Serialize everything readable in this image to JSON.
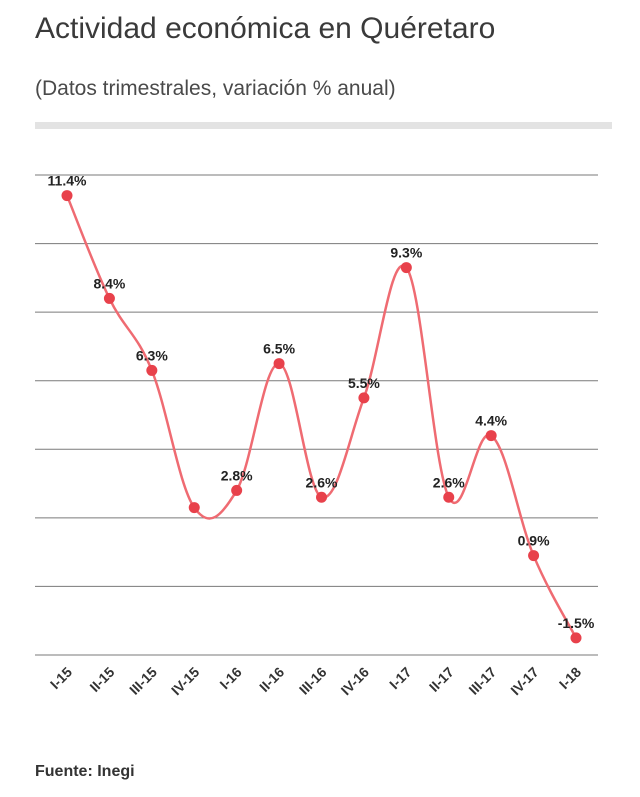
{
  "header": {
    "title": "Actividad económica en Quéretaro",
    "subtitle": "(Datos trimestrales, variación % anual)"
  },
  "footer": {
    "source": "Fuente: Inegi"
  },
  "colors": {
    "line": "#ef6b72",
    "point": "#e8414b",
    "grid": "#7a7a7a",
    "divider": "#e3e3e3"
  },
  "chart_data": {
    "type": "line",
    "title": "Actividad económica en Quéretaro",
    "subtitle": "(Datos trimestrales, variación % anual)",
    "categories": [
      "I-15",
      "II-15",
      "III-15",
      "IV-15",
      "I-16",
      "II-16",
      "III-16",
      "IV-16",
      "I-17",
      "II-17",
      "III-17",
      "IV-17",
      "I-18"
    ],
    "series": [
      {
        "values": [
          11.4,
          8.4,
          6.3,
          2.3,
          2.8,
          6.5,
          2.6,
          5.5,
          9.3,
          2.6,
          4.4,
          0.9,
          -1.5
        ],
        "labels": [
          "11.4%",
          "8.4%",
          "6.3%",
          "",
          "2.8%",
          "6.5%",
          "2.6%",
          "5.5%",
          "9.3%",
          "2.6%",
          "4.4%",
          "0.9%",
          "-1.5%"
        ]
      }
    ],
    "ylim": [
      -2,
      12
    ],
    "grid": true,
    "xlabel": "",
    "ylabel": ""
  }
}
